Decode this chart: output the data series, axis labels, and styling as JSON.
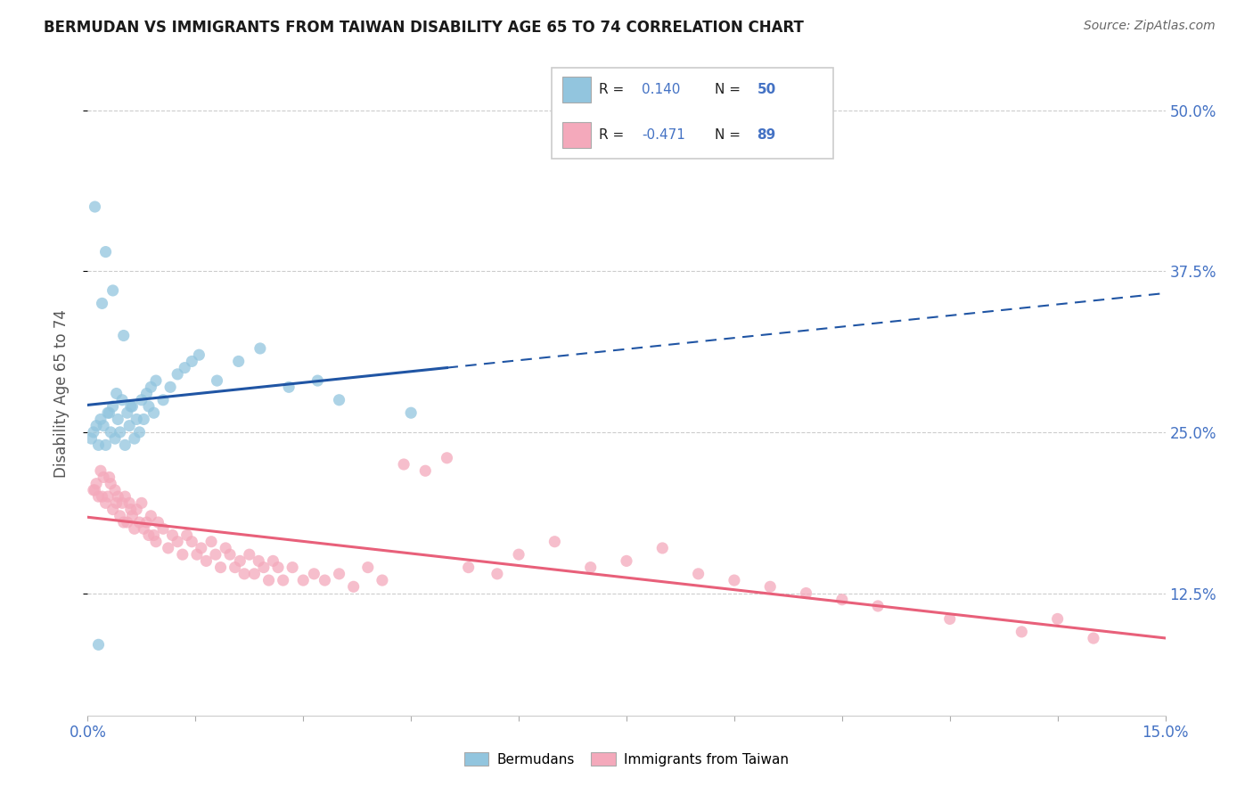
{
  "title": "BERMUDAN VS IMMIGRANTS FROM TAIWAN DISABILITY AGE 65 TO 74 CORRELATION CHART",
  "source": "Source: ZipAtlas.com",
  "ylabel": "Disability Age 65 to 74",
  "xlim": [
    0.0,
    15.0
  ],
  "ylim": [
    3.0,
    53.0
  ],
  "ytick_values": [
    12.5,
    25.0,
    37.5,
    50.0
  ],
  "ytick_labels": [
    "12.5%",
    "25.0%",
    "37.5%",
    "50.0%"
  ],
  "color_bermudan": "#92C5DE",
  "color_taiwan": "#F4A9BB",
  "color_trend_bermudan": "#2055A4",
  "color_trend_taiwan": "#E8607A",
  "color_grid": "#cccccc",
  "color_axis_text": "#4472C4",
  "bermudan_x": [
    0.05,
    0.08,
    0.12,
    0.15,
    0.18,
    0.22,
    0.25,
    0.28,
    0.32,
    0.35,
    0.38,
    0.42,
    0.45,
    0.48,
    0.52,
    0.55,
    0.58,
    0.62,
    0.65,
    0.68,
    0.72,
    0.75,
    0.78,
    0.82,
    0.85,
    0.88,
    0.92,
    0.95,
    1.05,
    1.15,
    1.25,
    1.35,
    1.45,
    1.55,
    1.8,
    2.1,
    2.4,
    2.8,
    3.2,
    3.5,
    0.3,
    0.4,
    0.5,
    0.6,
    4.5,
    0.25,
    0.35,
    0.1,
    0.15,
    0.2
  ],
  "bermudan_y": [
    24.5,
    25.0,
    25.5,
    24.0,
    26.0,
    25.5,
    24.0,
    26.5,
    25.0,
    27.0,
    24.5,
    26.0,
    25.0,
    27.5,
    24.0,
    26.5,
    25.5,
    27.0,
    24.5,
    26.0,
    25.0,
    27.5,
    26.0,
    28.0,
    27.0,
    28.5,
    26.5,
    29.0,
    27.5,
    28.5,
    29.5,
    30.0,
    30.5,
    31.0,
    29.0,
    30.5,
    31.5,
    28.5,
    29.0,
    27.5,
    26.5,
    28.0,
    32.5,
    27.0,
    26.5,
    39.0,
    36.0,
    42.5,
    8.5,
    35.0
  ],
  "taiwan_x": [
    0.08,
    0.12,
    0.15,
    0.18,
    0.22,
    0.25,
    0.28,
    0.32,
    0.35,
    0.38,
    0.42,
    0.45,
    0.48,
    0.52,
    0.55,
    0.58,
    0.62,
    0.65,
    0.68,
    0.72,
    0.75,
    0.78,
    0.82,
    0.85,
    0.88,
    0.92,
    0.95,
    0.98,
    1.05,
    1.12,
    1.18,
    1.25,
    1.32,
    1.38,
    1.45,
    1.52,
    1.58,
    1.65,
    1.72,
    1.78,
    1.85,
    1.92,
    1.98,
    2.05,
    2.12,
    2.18,
    2.25,
    2.32,
    2.38,
    2.45,
    2.52,
    2.58,
    2.65,
    2.72,
    2.85,
    3.0,
    3.15,
    3.3,
    3.5,
    3.7,
    3.9,
    4.1,
    4.4,
    4.7,
    5.0,
    5.3,
    5.7,
    6.0,
    6.5,
    7.0,
    7.5,
    8.0,
    8.5,
    9.0,
    9.5,
    10.0,
    10.5,
    11.0,
    12.0,
    13.0,
    13.5,
    14.0,
    0.1,
    0.2,
    0.3,
    0.4,
    0.5,
    0.6
  ],
  "taiwan_y": [
    20.5,
    21.0,
    20.0,
    22.0,
    21.5,
    19.5,
    20.0,
    21.0,
    19.0,
    20.5,
    20.0,
    18.5,
    19.5,
    20.0,
    18.0,
    19.5,
    18.5,
    17.5,
    19.0,
    18.0,
    19.5,
    17.5,
    18.0,
    17.0,
    18.5,
    17.0,
    16.5,
    18.0,
    17.5,
    16.0,
    17.0,
    16.5,
    15.5,
    17.0,
    16.5,
    15.5,
    16.0,
    15.0,
    16.5,
    15.5,
    14.5,
    16.0,
    15.5,
    14.5,
    15.0,
    14.0,
    15.5,
    14.0,
    15.0,
    14.5,
    13.5,
    15.0,
    14.5,
    13.5,
    14.5,
    13.5,
    14.0,
    13.5,
    14.0,
    13.0,
    14.5,
    13.5,
    22.5,
    22.0,
    23.0,
    14.5,
    14.0,
    15.5,
    16.5,
    14.5,
    15.0,
    16.0,
    14.0,
    13.5,
    13.0,
    12.5,
    12.0,
    11.5,
    10.5,
    9.5,
    10.5,
    9.0,
    20.5,
    20.0,
    21.5,
    19.5,
    18.0,
    19.0
  ]
}
